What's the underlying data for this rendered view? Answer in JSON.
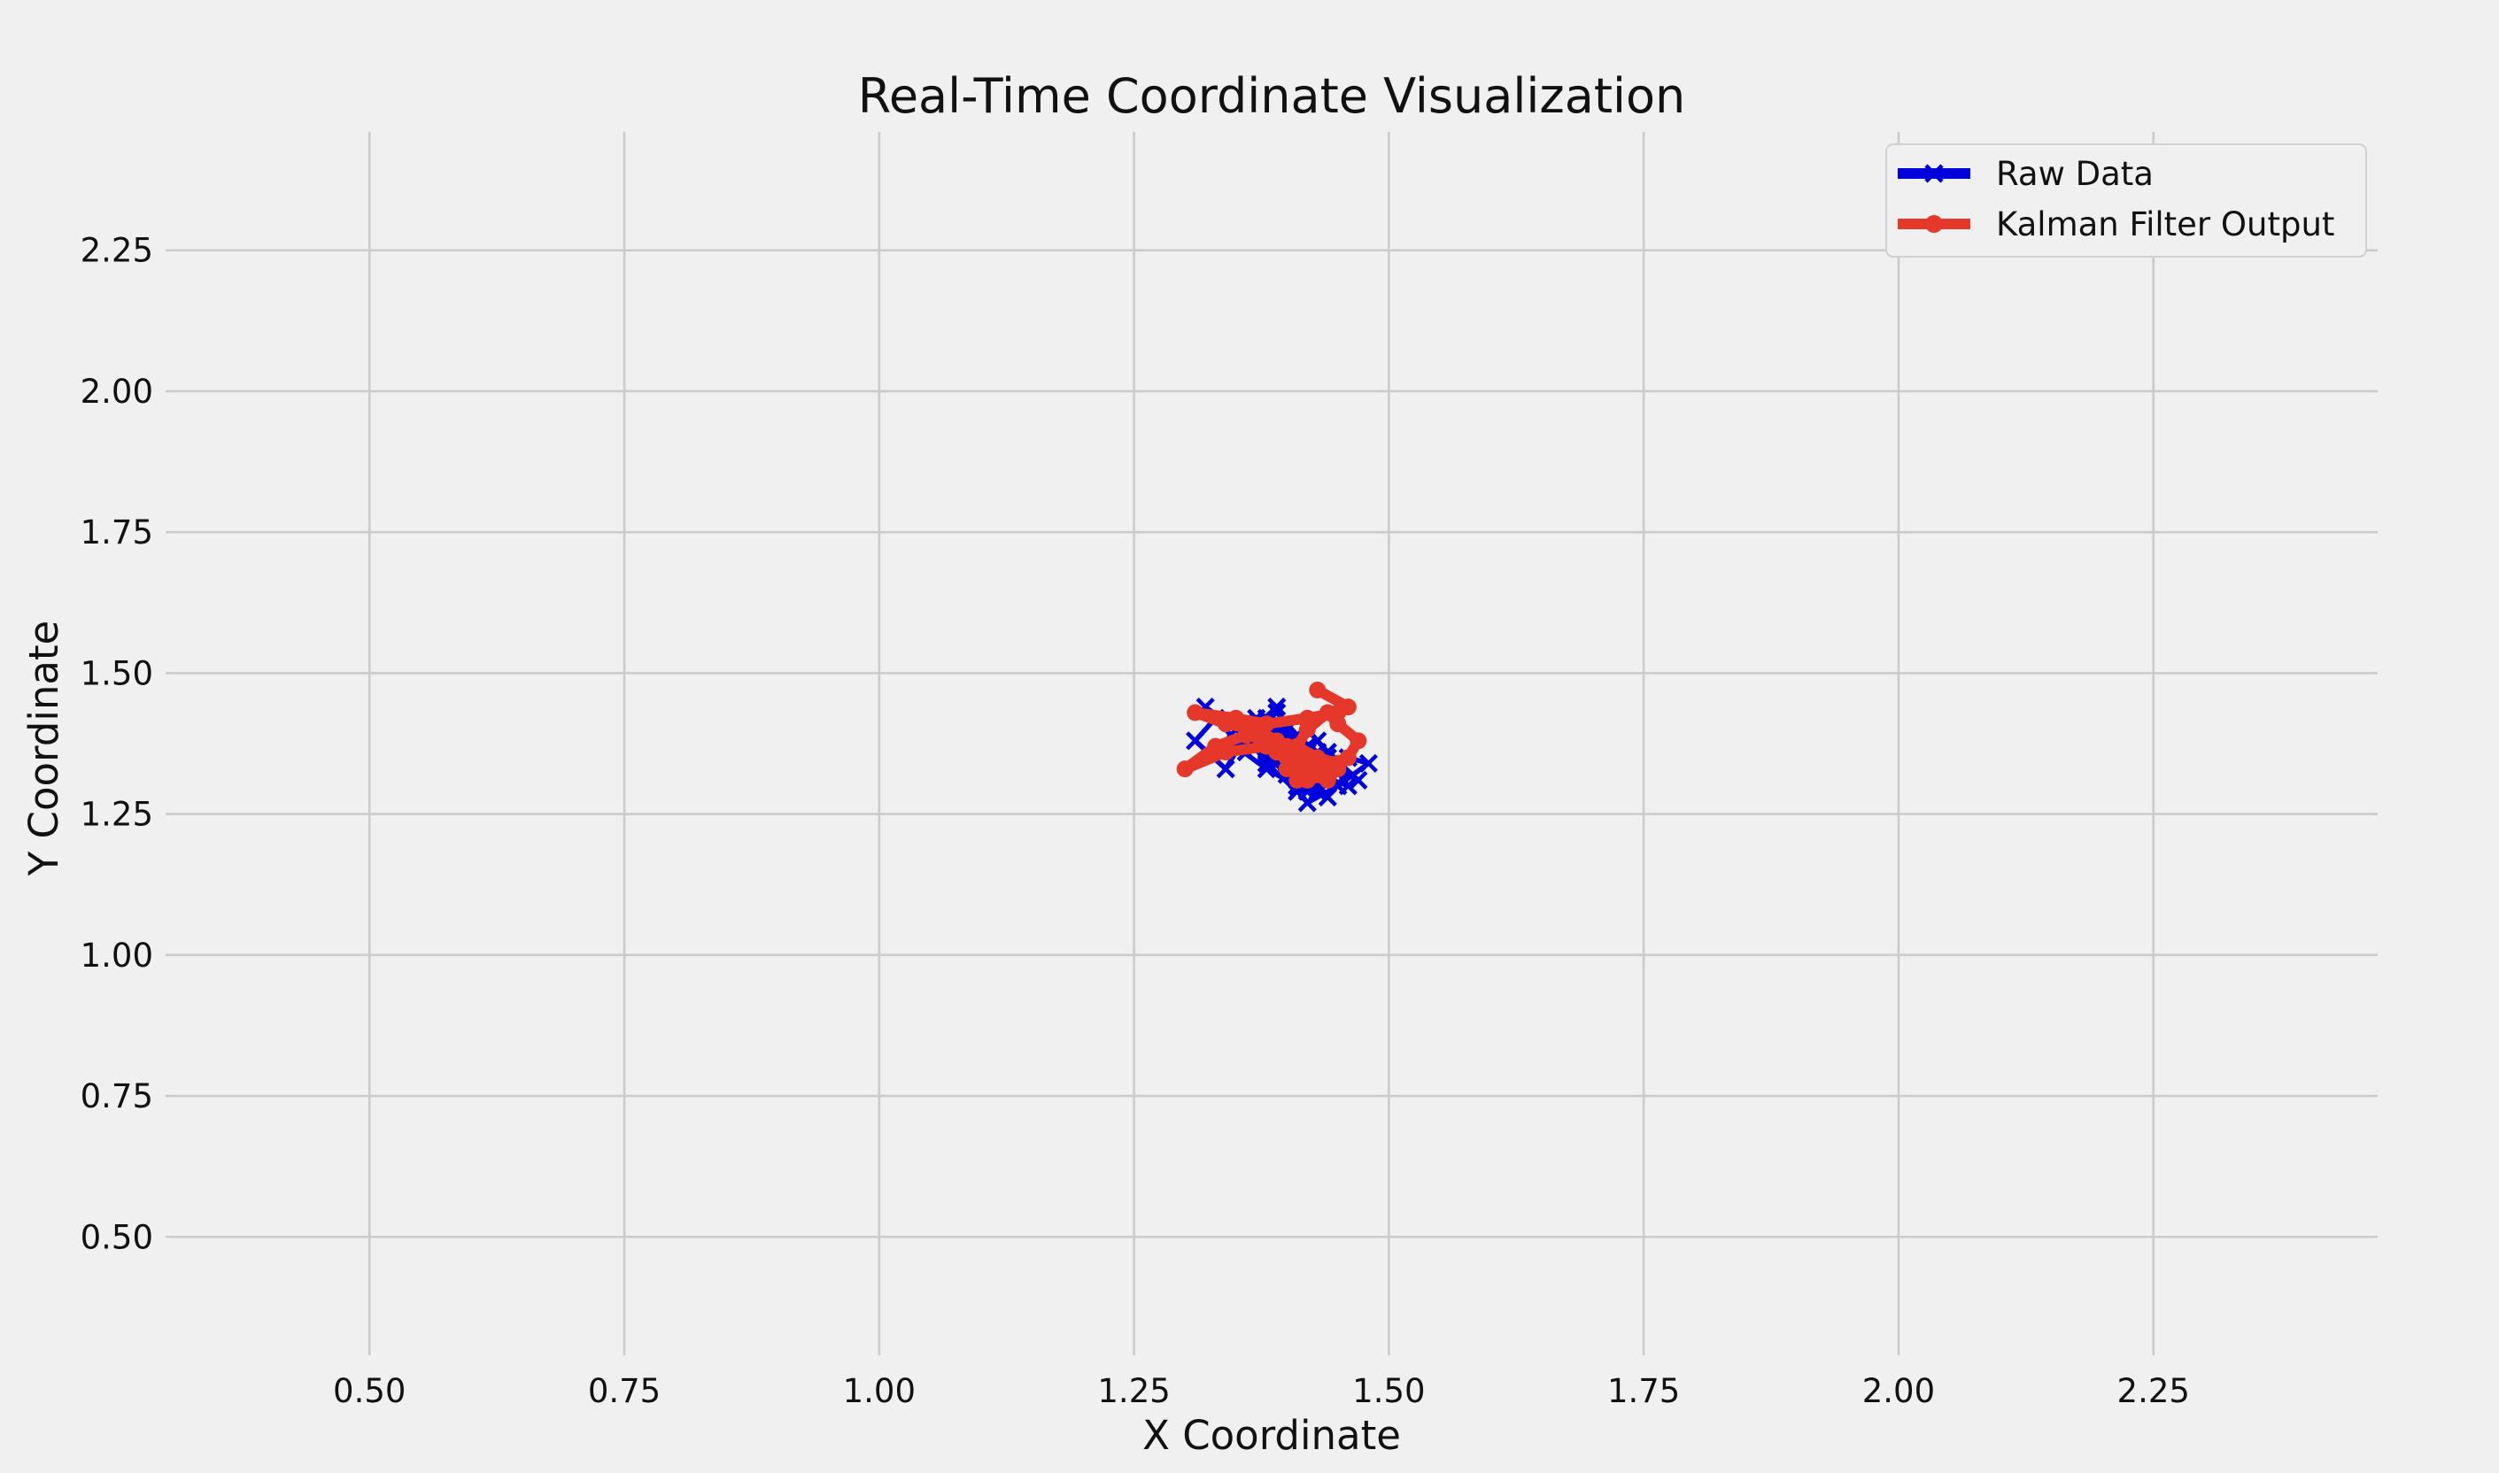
{
  "chart_data": {
    "type": "line",
    "title": "Real-Time Coordinate Visualization",
    "xlabel": "X Coordinate",
    "ylabel": "Y Coordinate",
    "xlim": [
      0.3,
      2.47
    ],
    "ylim": [
      0.29,
      2.46
    ],
    "x_ticks": [
      0.5,
      0.75,
      1.0,
      1.25,
      1.5,
      1.75,
      2.0,
      2.25
    ],
    "y_ticks": [
      0.5,
      0.75,
      1.0,
      1.25,
      1.5,
      1.75,
      2.0,
      2.25
    ],
    "x_tick_labels": [
      "0.50",
      "0.75",
      "1.00",
      "1.25",
      "1.50",
      "1.75",
      "2.00",
      "2.25"
    ],
    "y_tick_labels": [
      "0.50",
      "0.75",
      "1.00",
      "1.25",
      "1.50",
      "1.75",
      "2.00",
      "2.25"
    ],
    "grid": true,
    "legend_position": "top-right",
    "background": "#f0f0f0",
    "grid_color": "#cbcbcb",
    "series": [
      {
        "name": "Raw Data",
        "color": "#0000dd",
        "marker": "x",
        "x": [
          1.32,
          1.35,
          1.37,
          1.39,
          1.36,
          1.34,
          1.31,
          1.33,
          1.36,
          1.38,
          1.35,
          1.4,
          1.42,
          1.38,
          1.36,
          1.4,
          1.43,
          1.41,
          1.39,
          1.42,
          1.45,
          1.43,
          1.4,
          1.38,
          1.41,
          1.44,
          1.42,
          1.39,
          1.37,
          1.4,
          1.43,
          1.46,
          1.44,
          1.41,
          1.39,
          1.42,
          1.45,
          1.47,
          1.44,
          1.42,
          1.4,
          1.43,
          1.46,
          1.48,
          1.45,
          1.42,
          1.4,
          1.38,
          1.41,
          1.44,
          1.42,
          1.39,
          1.37,
          1.4,
          1.43,
          1.41,
          1.38,
          1.36,
          1.39,
          1.42,
          1.44,
          1.41,
          1.39,
          1.43,
          1.45,
          1.42,
          1.4,
          1.37,
          1.35,
          1.38,
          1.41,
          1.43,
          1.4,
          1.38,
          1.42,
          1.44,
          1.46,
          1.43,
          1.41,
          1.39
        ],
        "y": [
          1.44,
          1.4,
          1.37,
          1.44,
          1.39,
          1.33,
          1.38,
          1.42,
          1.36,
          1.41,
          1.38,
          1.34,
          1.31,
          1.37,
          1.4,
          1.33,
          1.29,
          1.35,
          1.39,
          1.32,
          1.3,
          1.36,
          1.4,
          1.35,
          1.31,
          1.28,
          1.33,
          1.37,
          1.42,
          1.36,
          1.32,
          1.3,
          1.35,
          1.38,
          1.34,
          1.29,
          1.33,
          1.31,
          1.36,
          1.4,
          1.37,
          1.33,
          1.35,
          1.34,
          1.3,
          1.27,
          1.32,
          1.36,
          1.39,
          1.34,
          1.3,
          1.35,
          1.41,
          1.38,
          1.33,
          1.29,
          1.34,
          1.39,
          1.43,
          1.37,
          1.32,
          1.3,
          1.35,
          1.38,
          1.34,
          1.31,
          1.36,
          1.4,
          1.37,
          1.33,
          1.3,
          1.34,
          1.38,
          1.42,
          1.36,
          1.32,
          1.35,
          1.31,
          1.29,
          1.34
        ]
      },
      {
        "name": "Kalman Filter Output",
        "color": "#e5372a",
        "marker": "o",
        "x": [
          1.43,
          1.46,
          1.45,
          1.42,
          1.38,
          1.35,
          1.31,
          1.34,
          1.37,
          1.39,
          1.4,
          1.38,
          1.36,
          1.33,
          1.3,
          1.34,
          1.38,
          1.4,
          1.39,
          1.41,
          1.42,
          1.4,
          1.39,
          1.41,
          1.43,
          1.44,
          1.43,
          1.41,
          1.4,
          1.42,
          1.44,
          1.45,
          1.43,
          1.42,
          1.41,
          1.43,
          1.46,
          1.47,
          1.45,
          1.44,
          1.42,
          1.41,
          1.43,
          1.45,
          1.44,
          1.42,
          1.41,
          1.4,
          1.42,
          1.43
        ],
        "y": [
          1.47,
          1.44,
          1.43,
          1.42,
          1.41,
          1.42,
          1.43,
          1.41,
          1.4,
          1.38,
          1.37,
          1.38,
          1.39,
          1.37,
          1.33,
          1.36,
          1.37,
          1.35,
          1.36,
          1.34,
          1.33,
          1.35,
          1.36,
          1.34,
          1.33,
          1.32,
          1.34,
          1.35,
          1.33,
          1.32,
          1.31,
          1.33,
          1.34,
          1.32,
          1.31,
          1.33,
          1.35,
          1.38,
          1.41,
          1.43,
          1.4,
          1.37,
          1.35,
          1.34,
          1.32,
          1.31,
          1.33,
          1.35,
          1.34,
          1.32
        ]
      }
    ]
  }
}
